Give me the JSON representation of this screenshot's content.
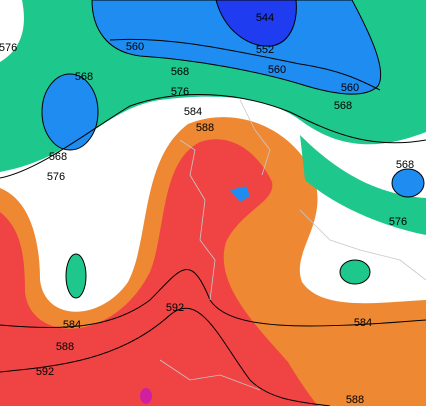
{
  "contour_labels": [
    544,
    560,
    552,
    560,
    576,
    568,
    568,
    560,
    568,
    576,
    584,
    588,
    568,
    576,
    568,
    576,
    584,
    588,
    592,
    584,
    592,
    588
  ]
}
